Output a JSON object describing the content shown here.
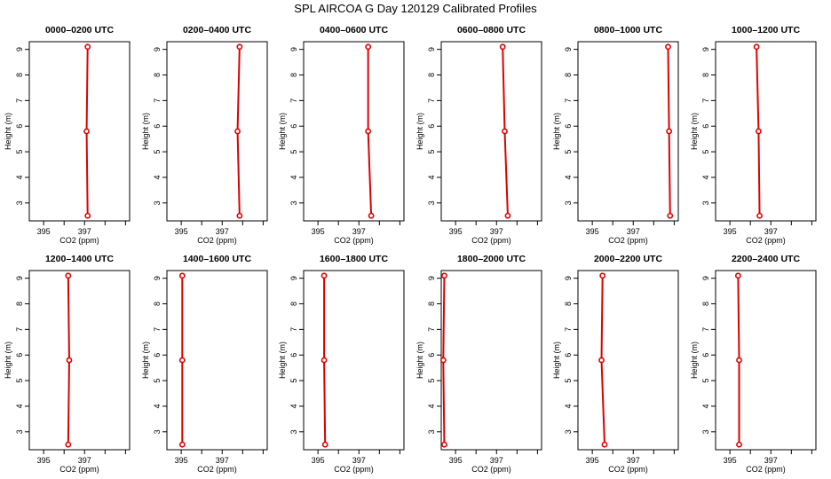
{
  "figure_title": "SPL AIRCOA G  Day 120129  Calibrated Profiles",
  "colors": {
    "profile": "#dd0000",
    "axes": "#000000",
    "background": "#ffffff"
  },
  "chart_data": [
    {
      "type": "line",
      "title": "0000–0200 UTC",
      "xlabel": "CO2 (ppm)",
      "ylabel": "Height (m)",
      "xlim": [
        394.3,
        399.2
      ],
      "ylim": [
        2.3,
        9.3
      ],
      "xticks": [
        395,
        396,
        397,
        398,
        399
      ],
      "xticklabels": [
        "395",
        "",
        "397",
        "",
        ""
      ],
      "yticks": [
        3,
        4,
        5,
        6,
        7,
        8,
        9
      ],
      "yticklabels": [
        "3",
        "4",
        "5",
        "6",
        "7",
        "8",
        "9"
      ],
      "series": [
        {
          "x": [
            397.15,
            397.1,
            397.15
          ],
          "y": [
            2.5,
            5.8,
            9.1
          ]
        }
      ]
    },
    {
      "type": "line",
      "title": "0200–0400 UTC",
      "xlabel": "CO2 (ppm)",
      "ylabel": "Height (m)",
      "xlim": [
        394.3,
        399.2
      ],
      "ylim": [
        2.3,
        9.3
      ],
      "xticks": [
        395,
        396,
        397,
        398,
        399
      ],
      "xticklabels": [
        "395",
        "",
        "397",
        "",
        ""
      ],
      "yticks": [
        3,
        4,
        5,
        6,
        7,
        8,
        9
      ],
      "yticklabels": [
        "3",
        "4",
        "5",
        "6",
        "7",
        "8",
        "9"
      ],
      "series": [
        {
          "x": [
            397.85,
            397.75,
            397.85
          ],
          "y": [
            2.5,
            5.8,
            9.1
          ]
        }
      ]
    },
    {
      "type": "line",
      "title": "0400–0600 UTC",
      "xlabel": "CO2 (ppm)",
      "ylabel": "Height (m)",
      "xlim": [
        394.3,
        399.2
      ],
      "ylim": [
        2.3,
        9.3
      ],
      "xticks": [
        395,
        396,
        397,
        398,
        399
      ],
      "xticklabels": [
        "395",
        "",
        "397",
        "",
        ""
      ],
      "yticks": [
        3,
        4,
        5,
        6,
        7,
        8,
        9
      ],
      "yticklabels": [
        "3",
        "4",
        "5",
        "6",
        "7",
        "8",
        "9"
      ],
      "series": [
        {
          "x": [
            397.6,
            397.45,
            397.45
          ],
          "y": [
            2.5,
            5.8,
            9.1
          ]
        }
      ]
    },
    {
      "type": "line",
      "title": "0600–0800 UTC",
      "xlabel": "CO2 (ppm)",
      "ylabel": "Height (m)",
      "xlim": [
        394.3,
        399.2
      ],
      "ylim": [
        2.3,
        9.3
      ],
      "xticks": [
        395,
        396,
        397,
        398,
        399
      ],
      "xticklabels": [
        "395",
        "",
        "397",
        "",
        ""
      ],
      "yticks": [
        3,
        4,
        5,
        6,
        7,
        8,
        9
      ],
      "yticklabels": [
        "3",
        "4",
        "5",
        "6",
        "7",
        "8",
        "9"
      ],
      "series": [
        {
          "x": [
            397.55,
            397.4,
            397.3
          ],
          "y": [
            2.5,
            5.8,
            9.1
          ]
        }
      ]
    },
    {
      "type": "line",
      "title": "0800–1000 UTC",
      "xlabel": "CO2 (ppm)",
      "ylabel": "Height (m)",
      "xlim": [
        394.3,
        399.2
      ],
      "ylim": [
        2.3,
        9.3
      ],
      "xticks": [
        395,
        396,
        397,
        398,
        399
      ],
      "xticklabels": [
        "395",
        "",
        "397",
        "",
        ""
      ],
      "yticks": [
        3,
        4,
        5,
        6,
        7,
        8,
        9
      ],
      "yticklabels": [
        "3",
        "4",
        "5",
        "6",
        "7",
        "8",
        "9"
      ],
      "series": [
        {
          "x": [
            398.8,
            398.75,
            398.7
          ],
          "y": [
            2.5,
            5.8,
            9.1
          ]
        }
      ]
    },
    {
      "type": "line",
      "title": "1000–1200 UTC",
      "xlabel": "CO2 (ppm)",
      "ylabel": "Height (m)",
      "xlim": [
        394.3,
        399.2
      ],
      "ylim": [
        2.3,
        9.3
      ],
      "xticks": [
        395,
        396,
        397,
        398,
        399
      ],
      "xticklabels": [
        "395",
        "",
        "397",
        "",
        ""
      ],
      "yticks": [
        3,
        4,
        5,
        6,
        7,
        8,
        9
      ],
      "yticklabels": [
        "3",
        "4",
        "5",
        "6",
        "7",
        "8",
        "9"
      ],
      "series": [
        {
          "x": [
            396.45,
            396.4,
            396.3
          ],
          "y": [
            2.5,
            5.8,
            9.1
          ]
        }
      ]
    },
    {
      "type": "line",
      "title": "1200–1400 UTC",
      "xlabel": "CO2 (ppm)",
      "ylabel": "Height (m)",
      "xlim": [
        394.3,
        399.2
      ],
      "ylim": [
        2.3,
        9.3
      ],
      "xticks": [
        395,
        396,
        397,
        398,
        399
      ],
      "xticklabels": [
        "395",
        "",
        "397",
        "",
        ""
      ],
      "yticks": [
        3,
        4,
        5,
        6,
        7,
        8,
        9
      ],
      "yticklabels": [
        "3",
        "4",
        "5",
        "6",
        "7",
        "8",
        "9"
      ],
      "series": [
        {
          "x": [
            396.2,
            396.25,
            396.2
          ],
          "y": [
            2.5,
            5.8,
            9.1
          ]
        }
      ]
    },
    {
      "type": "line",
      "title": "1400–1600 UTC",
      "xlabel": "CO2 (ppm)",
      "ylabel": "Height (m)",
      "xlim": [
        394.3,
        399.2
      ],
      "ylim": [
        2.3,
        9.3
      ],
      "xticks": [
        395,
        396,
        397,
        398,
        399
      ],
      "xticklabels": [
        "395",
        "",
        "397",
        "",
        ""
      ],
      "yticks": [
        3,
        4,
        5,
        6,
        7,
        8,
        9
      ],
      "yticklabels": [
        "3",
        "4",
        "5",
        "6",
        "7",
        "8",
        "9"
      ],
      "series": [
        {
          "x": [
            395.05,
            395.05,
            395.05
          ],
          "y": [
            2.5,
            5.8,
            9.1
          ]
        }
      ]
    },
    {
      "type": "line",
      "title": "1600–1800 UTC",
      "xlabel": "CO2 (ppm)",
      "ylabel": "Height (m)",
      "xlim": [
        394.3,
        399.2
      ],
      "ylim": [
        2.3,
        9.3
      ],
      "xticks": [
        395,
        396,
        397,
        398,
        399
      ],
      "xticklabels": [
        "395",
        "",
        "397",
        "",
        ""
      ],
      "yticks": [
        3,
        4,
        5,
        6,
        7,
        8,
        9
      ],
      "yticklabels": [
        "3",
        "4",
        "5",
        "6",
        "7",
        "8",
        "9"
      ],
      "series": [
        {
          "x": [
            395.35,
            395.3,
            395.3
          ],
          "y": [
            2.5,
            5.8,
            9.1
          ]
        }
      ]
    },
    {
      "type": "line",
      "title": "1800–2000 UTC",
      "xlabel": "CO2 (ppm)",
      "ylabel": "Height (m)",
      "xlim": [
        394.3,
        399.2
      ],
      "ylim": [
        2.3,
        9.3
      ],
      "xticks": [
        395,
        396,
        397,
        398,
        399
      ],
      "xticklabels": [
        "395",
        "",
        "397",
        "",
        ""
      ],
      "yticks": [
        3,
        4,
        5,
        6,
        7,
        8,
        9
      ],
      "yticklabels": [
        "3",
        "4",
        "5",
        "6",
        "7",
        "8",
        "9"
      ],
      "series": [
        {
          "x": [
            394.45,
            394.4,
            394.45
          ],
          "y": [
            2.5,
            5.8,
            9.1
          ]
        }
      ]
    },
    {
      "type": "line",
      "title": "2000–2200 UTC",
      "xlabel": "CO2 (ppm)",
      "ylabel": "Height (m)",
      "xlim": [
        394.3,
        399.2
      ],
      "ylim": [
        2.3,
        9.3
      ],
      "xticks": [
        395,
        396,
        397,
        398,
        399
      ],
      "xticklabels": [
        "395",
        "",
        "397",
        "",
        ""
      ],
      "yticks": [
        3,
        4,
        5,
        6,
        7,
        8,
        9
      ],
      "yticklabels": [
        "3",
        "4",
        "5",
        "6",
        "7",
        "8",
        "9"
      ],
      "series": [
        {
          "x": [
            395.6,
            395.45,
            395.5
          ],
          "y": [
            2.5,
            5.8,
            9.1
          ]
        }
      ]
    },
    {
      "type": "line",
      "title": "2200–2400 UTC",
      "xlabel": "CO2 (ppm)",
      "ylabel": "Height (m)",
      "xlim": [
        394.3,
        399.2
      ],
      "ylim": [
        2.3,
        9.3
      ],
      "xticks": [
        395,
        396,
        397,
        398,
        399
      ],
      "xticklabels": [
        "395",
        "",
        "397",
        "",
        ""
      ],
      "yticks": [
        3,
        4,
        5,
        6,
        7,
        8,
        9
      ],
      "yticklabels": [
        "3",
        "4",
        "5",
        "6",
        "7",
        "8",
        "9"
      ],
      "series": [
        {
          "x": [
            395.45,
            395.45,
            395.4
          ],
          "y": [
            2.5,
            5.8,
            9.1
          ]
        }
      ]
    }
  ]
}
